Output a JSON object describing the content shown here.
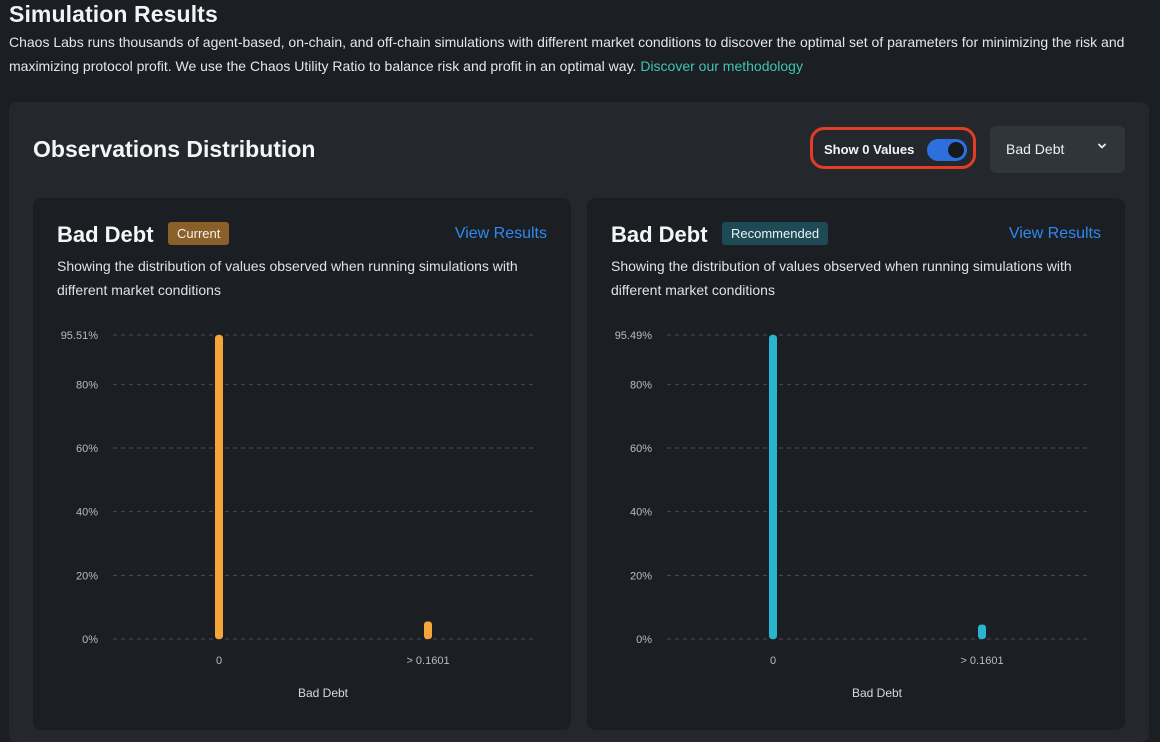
{
  "page": {
    "title": "Simulation Results",
    "intro_text": "Chaos Labs runs thousands of agent-based, on-chain, and off-chain simulations with different market conditions to discover the optimal set of parameters for minimizing the risk and maximizing protocol profit. We use the Chaos Utility Ratio to balance risk and profit in an optimal way.",
    "intro_link": "Discover our methodology"
  },
  "panel": {
    "title": "Observations Distribution",
    "toggle_label": "Show 0 Values",
    "toggle_on": true,
    "metric_select": "Bad Debt"
  },
  "cards": [
    {
      "title": "Bad Debt",
      "badge": "Current",
      "link": "View Results",
      "description": "Showing the distribution of values observed when running simulations with different market conditions",
      "chart_color": "#f5a53a"
    },
    {
      "title": "Bad Debt",
      "badge": "Recommended",
      "link": "View Results",
      "description": "Showing the distribution of values observed when running simulations with different market conditions",
      "chart_color": "#2bb4cf"
    }
  ],
  "chart_data": [
    {
      "type": "bar",
      "title": "Bad Debt",
      "categories": [
        "0",
        "> 0.1601"
      ],
      "values": [
        95.51,
        5.5
      ],
      "xlabel": "Bad Debt",
      "ylabel": "",
      "ylim": [
        0,
        95.51
      ],
      "yticks": [
        0,
        20,
        40,
        60,
        80,
        95.51
      ],
      "ytick_labels": [
        "0%",
        "20%",
        "40%",
        "60%",
        "80%",
        "95.51%"
      ],
      "grid": true
    },
    {
      "type": "bar",
      "title": "Bad Debt",
      "categories": [
        "0",
        "> 0.1601"
      ],
      "values": [
        95.49,
        4.5
      ],
      "xlabel": "Bad Debt",
      "ylabel": "",
      "ylim": [
        0,
        95.49
      ],
      "yticks": [
        0,
        20,
        40,
        60,
        80,
        95.49
      ],
      "ytick_labels": [
        "0%",
        "20%",
        "40%",
        "60%",
        "80%",
        "95.49%"
      ],
      "grid": true
    }
  ]
}
